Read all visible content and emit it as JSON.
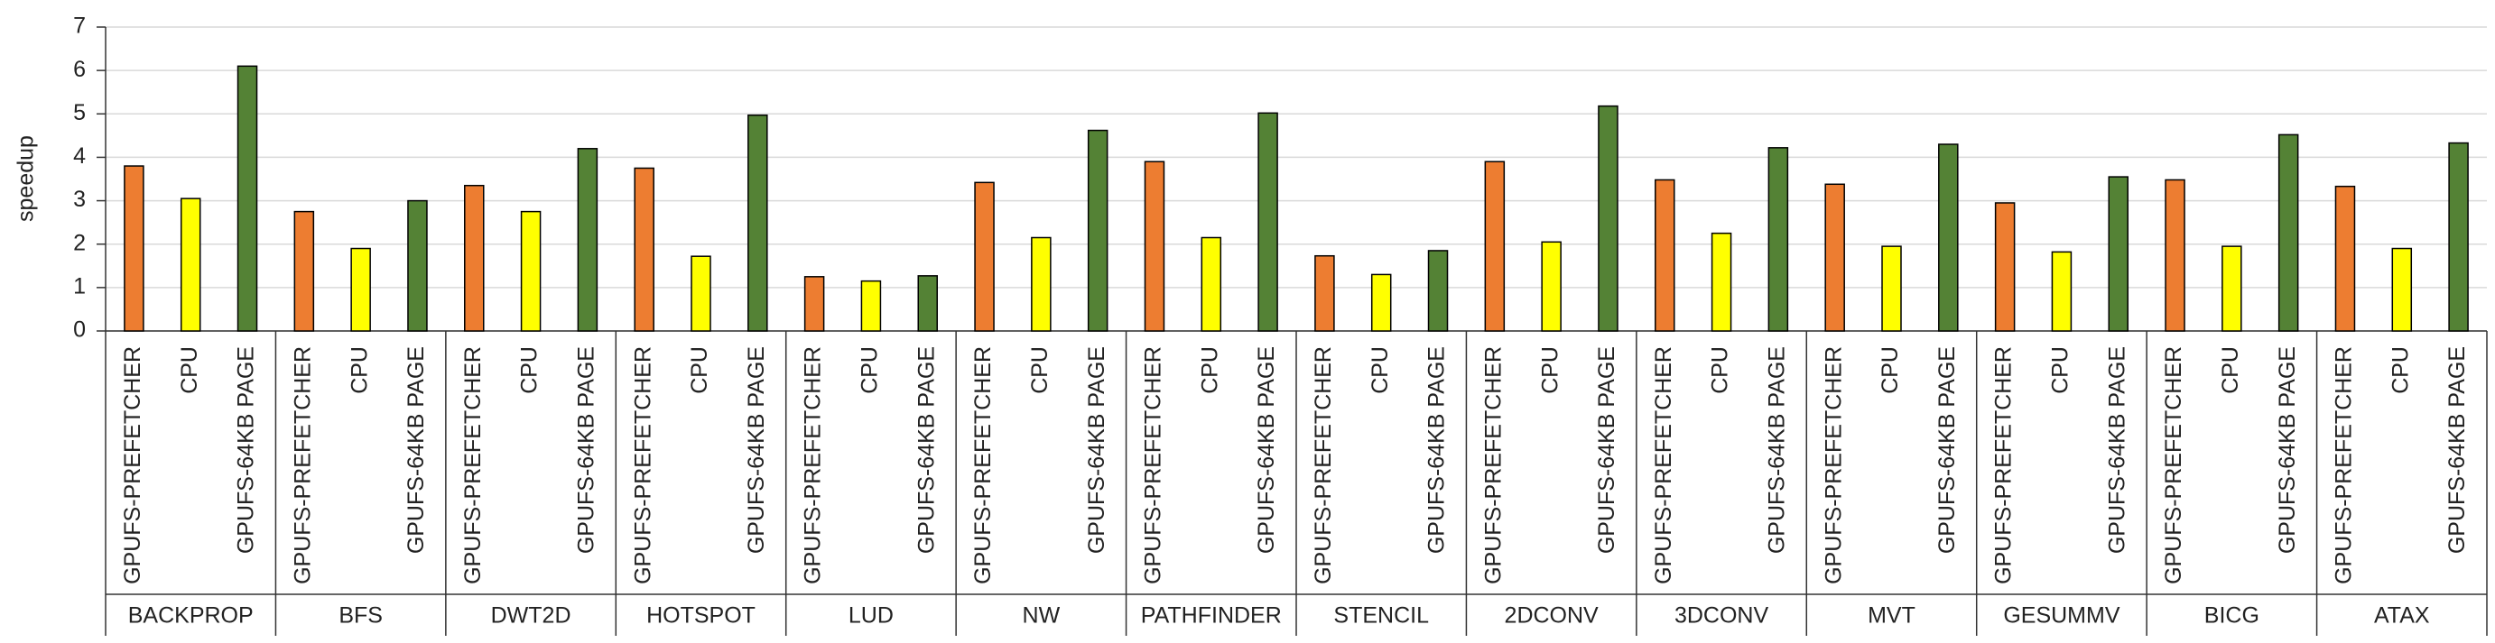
{
  "chart_data": {
    "type": "grouped_bar",
    "y_label": "speedup",
    "categories": [
      "BACKPROP",
      "BFS",
      "DWT2D",
      "HOTSPOT",
      "LUD",
      "NW",
      "PATHFINDER",
      "STENCIL",
      "2DCONV",
      "3DCONV",
      "MVT",
      "GESUMMV",
      "BICG",
      "ATAX"
    ],
    "series": [
      {
        "name": "GPUFS-PREFETCHER",
        "color": "#ed7d31",
        "values": [
          3.8,
          2.75,
          3.35,
          3.75,
          1.25,
          3.42,
          3.9,
          1.73,
          3.9,
          3.48,
          3.38,
          2.95,
          3.48,
          3.33
        ]
      },
      {
        "name": "CPU",
        "color": "#ffff00",
        "values": [
          3.05,
          1.9,
          2.75,
          1.72,
          1.15,
          2.15,
          2.15,
          1.3,
          2.05,
          2.25,
          1.95,
          1.82,
          1.95,
          1.9
        ]
      },
      {
        "name": "GPUFS-64KB PAGE",
        "color": "#548235",
        "values": [
          6.1,
          3.0,
          4.2,
          4.97,
          1.27,
          4.62,
          5.02,
          1.85,
          5.18,
          4.22,
          4.3,
          3.55,
          4.52,
          4.33
        ]
      }
    ],
    "ylim": [
      0,
      7
    ],
    "yticks": [
      0,
      1,
      2,
      3,
      4,
      5,
      6,
      7
    ],
    "grid": true
  }
}
